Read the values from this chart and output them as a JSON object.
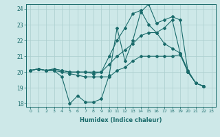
{
  "xlabel": "Humidex (Indice chaleur)",
  "xlim": [
    -0.5,
    23.5
  ],
  "ylim": [
    17.8,
    24.3
  ],
  "yticks": [
    18,
    19,
    20,
    21,
    22,
    23,
    24
  ],
  "xticks": [
    0,
    1,
    2,
    3,
    4,
    5,
    6,
    7,
    8,
    9,
    10,
    11,
    12,
    13,
    14,
    15,
    16,
    17,
    18,
    19,
    20,
    21,
    22,
    23
  ],
  "background_color": "#cde8e8",
  "grid_color": "#aacece",
  "line_color": "#1a6b6b",
  "lines": [
    [
      20.1,
      20.2,
      20.1,
      20.1,
      19.7,
      18.0,
      18.5,
      18.1,
      18.1,
      18.3,
      19.8,
      22.8,
      20.7,
      22.0,
      23.8,
      24.3,
      23.1,
      23.3,
      23.5,
      23.3,
      20.0,
      19.3,
      19.1,
      null
    ],
    [
      20.1,
      20.2,
      20.1,
      20.1,
      20.0,
      19.9,
      19.8,
      19.7,
      19.7,
      19.7,
      19.7,
      20.1,
      20.3,
      20.7,
      21.0,
      21.0,
      21.0,
      21.0,
      21.0,
      21.1,
      20.0,
      19.3,
      19.1,
      null
    ],
    [
      20.1,
      20.2,
      20.1,
      20.2,
      20.1,
      20.0,
      20.0,
      20.0,
      19.9,
      20.0,
      20.5,
      21.0,
      21.4,
      21.8,
      22.3,
      22.5,
      22.5,
      22.8,
      23.3,
      21.2,
      20.1,
      19.3,
      19.1,
      null
    ],
    [
      20.1,
      20.2,
      20.1,
      20.2,
      20.1,
      20.0,
      20.0,
      20.0,
      20.0,
      20.0,
      21.0,
      22.0,
      22.8,
      23.7,
      23.9,
      23.0,
      22.5,
      21.8,
      21.5,
      21.2,
      20.0,
      19.3,
      19.1,
      null
    ]
  ]
}
